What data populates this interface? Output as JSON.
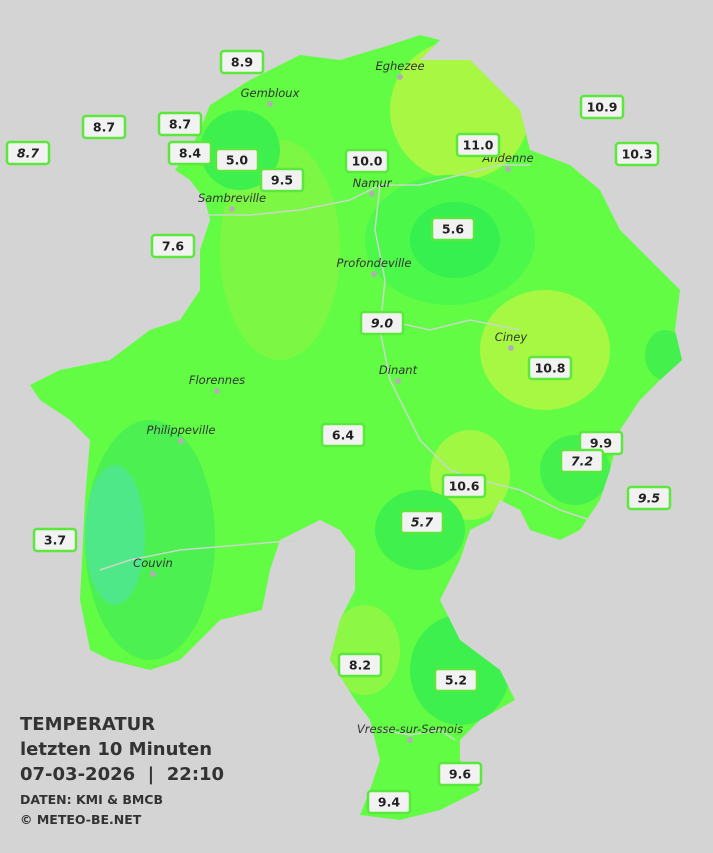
{
  "title": {
    "heading": "TEMPERATUR",
    "period": "letzten 10 Minuten",
    "timestamp": "07-03-2026  |  22:10",
    "source": "DATEN: KMI & BMCB",
    "copyright": "© METEO-BE.NET"
  },
  "towns": [
    "Eghezee",
    "Gembloux",
    "Andenne",
    "Namur",
    "Sambreville",
    "Profondeville",
    "Ciney",
    "Florennes",
    "Dinant",
    "Philippeville",
    "Couvin",
    "Vresse-sur-Semois"
  ],
  "stations": [
    "8.9",
    "8.7",
    "8.7",
    "8.7",
    "8.4",
    "5.0",
    "9.5",
    "10.0",
    "11.0",
    "10.9",
    "10.3",
    "7.6",
    "5.6",
    "9.0",
    "10.8",
    "6.4",
    "9.9",
    "7.2",
    "10.6",
    "9.5",
    "5.7",
    "3.7",
    "8.2",
    "5.2",
    "9.6",
    "9.4"
  ]
}
